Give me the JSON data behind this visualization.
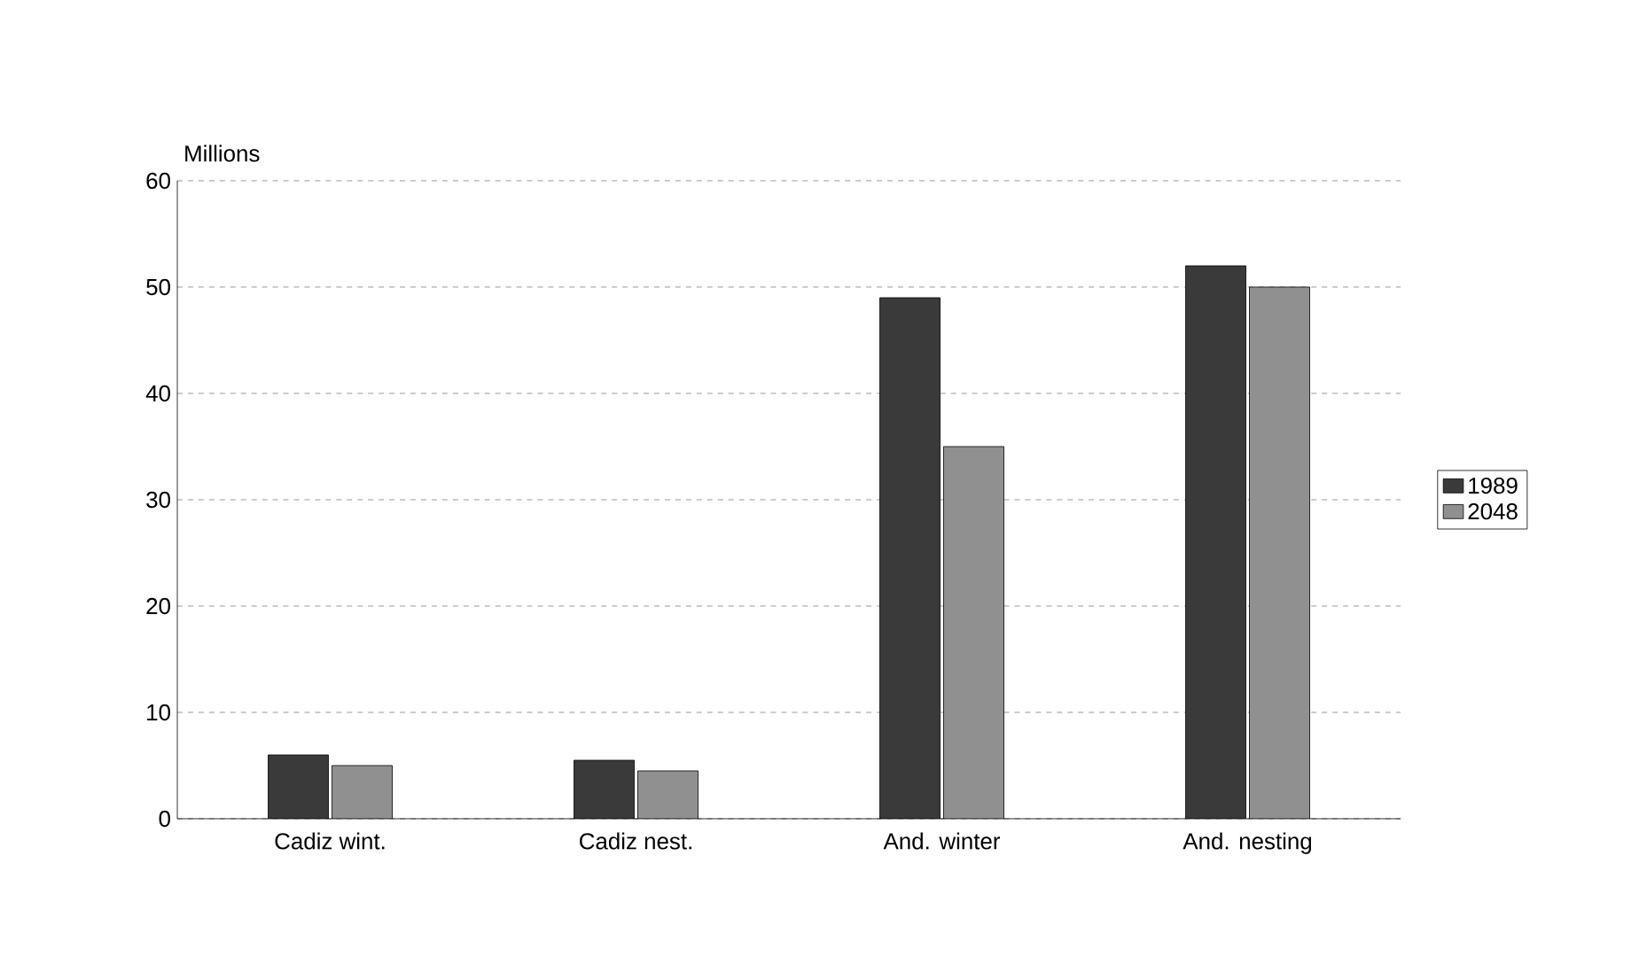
{
  "chart_data": {
    "type": "bar",
    "ylabel": "Millions",
    "categories": [
      "Cadiz wint.",
      "Cadiz nest.",
      "And. winter",
      "And. nesting"
    ],
    "series": [
      {
        "name": "1989",
        "color": "#3a3a3a",
        "values": [
          6,
          5.5,
          49,
          52
        ]
      },
      {
        "name": "2048",
        "color": "#909090",
        "values": [
          5,
          4.5,
          35,
          50
        ]
      }
    ],
    "ylim": [
      0,
      60
    ],
    "yticks": [
      0,
      10,
      20,
      30,
      40,
      50,
      60
    ],
    "grid": "y",
    "legend": "right"
  }
}
